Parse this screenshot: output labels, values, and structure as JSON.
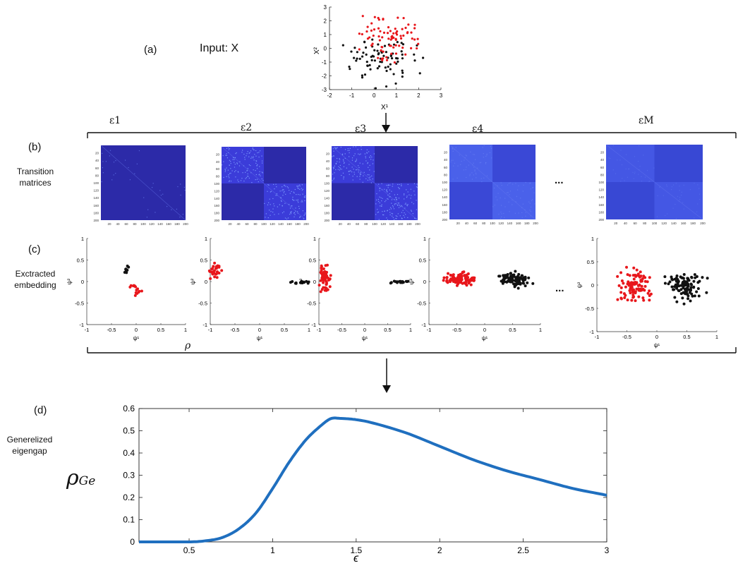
{
  "panel_a": {
    "label": "(a)",
    "input_label": "Input: X",
    "xlabel": "X¹",
    "ylabel": "X²",
    "xticks": [
      "-2",
      "-1",
      "0",
      "1",
      "2",
      "3"
    ],
    "yticks": [
      "3",
      "2",
      "1",
      "0",
      "-1",
      "-2",
      "-3"
    ]
  },
  "panel_b": {
    "label": "(b)",
    "row_label_line1": "Transition",
    "row_label_line2": "matrices",
    "eps_labels": [
      "ε1",
      "ε2",
      "ε3",
      "ε4",
      "εM"
    ],
    "ellipsis": "...",
    "yticks": [
      "20",
      "40",
      "60",
      "80",
      "100",
      "120",
      "140",
      "160",
      "180",
      "200"
    ],
    "xticks": [
      "20",
      "40",
      "60",
      "80",
      "100",
      "120",
      "140",
      "160",
      "180",
      "200"
    ],
    "colors": {
      "dark": "#2c2aa8",
      "mid": "#3b3cd9",
      "light": "#4a5ce8"
    }
  },
  "panel_c": {
    "label": "(c)",
    "row_label_line1": "Exctracted",
    "row_label_line2": "embedding",
    "ylabel": "ψ²",
    "xlabel": "ψ¹",
    "rho_mark": "ρ",
    "ellipsis": "...",
    "xticks": [
      "-1",
      "-0.5",
      "0",
      "0.5",
      "1"
    ],
    "yticks": [
      "1",
      "0.5",
      "0",
      "-0.5",
      "-1"
    ]
  },
  "panel_d": {
    "label": "(d)",
    "row_label_line1": "Generelized",
    "row_label_line2": "eigengap",
    "ylabel_main": "ρ",
    "ylabel_sub": "Ge"
  },
  "chart_data": {
    "type": "line",
    "title": "",
    "xlabel": "ϵ",
    "ylabel": "ρGe",
    "xlim": [
      0.2,
      3
    ],
    "ylim": [
      0,
      0.6
    ],
    "xticks": [
      0.5,
      1,
      1.5,
      2,
      2.5,
      3
    ],
    "yticks": [
      0,
      0.1,
      0.2,
      0.3,
      0.4,
      0.5,
      0.6
    ],
    "series": [
      {
        "name": "generalized eigengap",
        "color": "#1f6fbf",
        "x": [
          0.2,
          0.5,
          0.6,
          0.7,
          0.8,
          0.9,
          1.0,
          1.1,
          1.2,
          1.3,
          1.35,
          1.4,
          1.5,
          1.6,
          1.8,
          2.0,
          2.2,
          2.4,
          2.6,
          2.8,
          3.0
        ],
        "y": [
          0,
          0,
          0.005,
          0.02,
          0.06,
          0.13,
          0.24,
          0.36,
          0.46,
          0.53,
          0.555,
          0.556,
          0.55,
          0.535,
          0.49,
          0.43,
          0.37,
          0.32,
          0.28,
          0.24,
          0.21
        ]
      }
    ],
    "colors": {
      "red": "#e8161b",
      "black": "#111111"
    }
  }
}
